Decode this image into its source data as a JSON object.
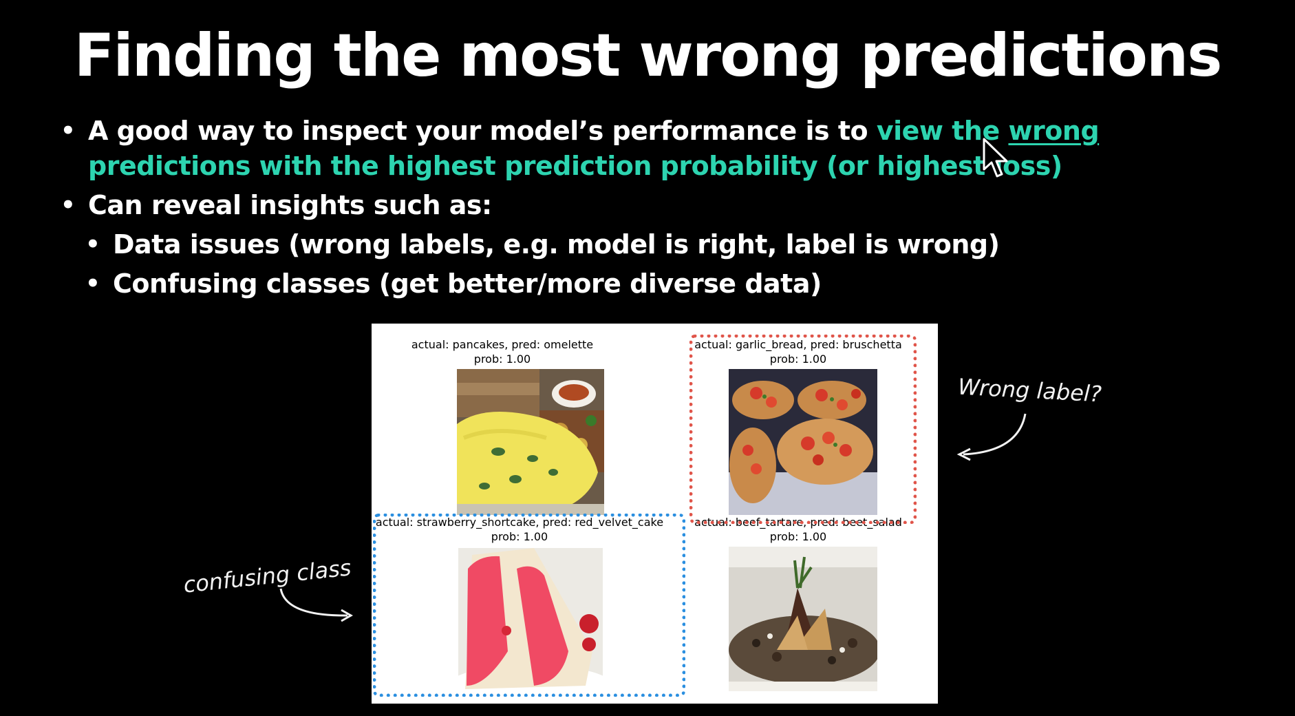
{
  "slide": {
    "title": "Finding the most wrong predictions",
    "bullets": [
      {
        "text_plain": "A good way to inspect your model’s performance is to ",
        "text_highlight_pre": "view the ",
        "text_highlight_underlined": "wrong",
        "text_highlight_post": " predictions with the highest prediction probability (or highest loss)"
      },
      {
        "text": "Can reveal insights such as:"
      }
    ],
    "sub_bullets": [
      {
        "text": "Data issues (wrong labels, e.g. model is right, label is wrong)"
      },
      {
        "text": "Confusing classes (get better/more diverse data)"
      }
    ]
  },
  "figure": {
    "panels": [
      {
        "title_line1": "actual: pancakes, pred: omelette",
        "title_line2": "prob: 1.00"
      },
      {
        "title_line1": "actual: garlic_bread, pred: bruschetta",
        "title_line2": "prob: 1.00"
      },
      {
        "title_line1": "actual: strawberry_shortcake, pred: red_velvet_cake",
        "title_line2": "prob: 1.00"
      },
      {
        "title_line1": "actual: beef_tartare, pred: beet_salad",
        "title_line2": "prob: 1.00"
      }
    ]
  },
  "annotations": {
    "wrong_label": "Wrong label?",
    "confusing_class": "confusing class"
  },
  "colors": {
    "highlight": "#2dd4b0",
    "wrong_label_box": "#e0554a",
    "confusing_class_box": "#2b8fe0",
    "background": "#000000"
  }
}
